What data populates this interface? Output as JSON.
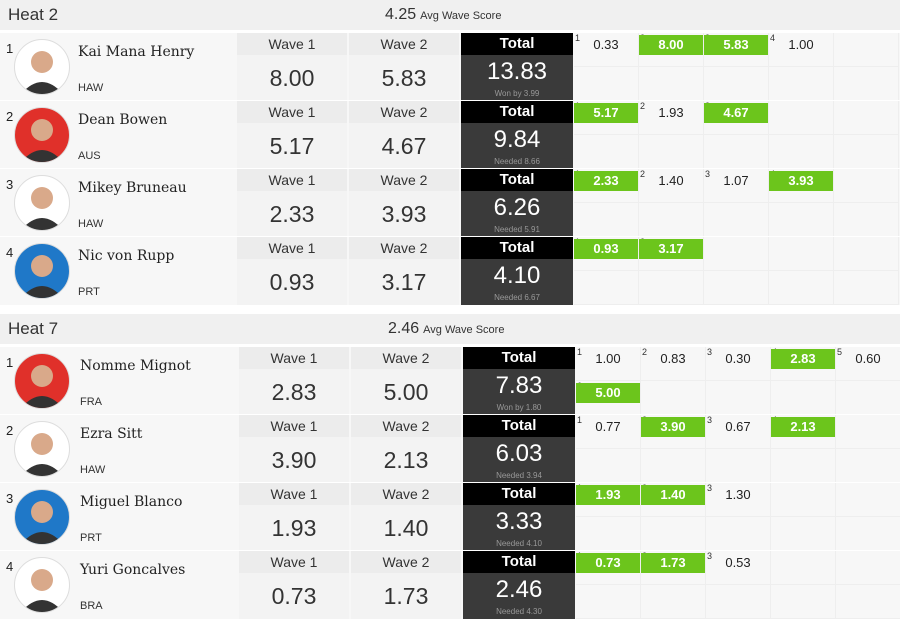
{
  "heats": [
    {
      "title": "Heat 2",
      "avg": "4.25",
      "avg_label": "Avg Wave Score",
      "surfers": [
        {
          "rank": "1",
          "name": "Kai Mana Henry",
          "country": "HAW",
          "wave1_label": "Wave 1",
          "wave1": "8.00",
          "wave2_label": "Wave 2",
          "wave2": "5.83",
          "total_label": "Total",
          "total": "13.83",
          "note": "Won by 3.99",
          "waves": [
            {
              "n": "1",
              "score": "0.33",
              "counted": false
            },
            {
              "n": "2",
              "score": "8.00",
              "counted": true
            },
            {
              "n": "3",
              "score": "5.83",
              "counted": true
            },
            {
              "n": "4",
              "score": "1.00",
              "counted": false
            }
          ]
        },
        {
          "rank": "2",
          "name": "Dean Bowen",
          "country": "AUS",
          "wave1_label": "Wave 1",
          "wave1": "5.17",
          "wave2_label": "Wave 2",
          "wave2": "4.67",
          "total_label": "Total",
          "total": "9.84",
          "note": "Needed 8.66",
          "waves": [
            {
              "n": "1",
              "score": "5.17",
              "counted": true
            },
            {
              "n": "2",
              "score": "1.93",
              "counted": false
            },
            {
              "n": "3",
              "score": "4.67",
              "counted": true
            }
          ]
        },
        {
          "rank": "3",
          "name": "Mikey Bruneau",
          "country": "HAW",
          "wave1_label": "Wave 1",
          "wave1": "2.33",
          "wave2_label": "Wave 2",
          "wave2": "3.93",
          "total_label": "Total",
          "total": "6.26",
          "note": "Needed 5.91",
          "waves": [
            {
              "n": "1",
              "score": "2.33",
              "counted": true
            },
            {
              "n": "2",
              "score": "1.40",
              "counted": false
            },
            {
              "n": "3",
              "score": "1.07",
              "counted": false
            },
            {
              "n": "4",
              "score": "3.93",
              "counted": true
            }
          ]
        },
        {
          "rank": "4",
          "name": "Nic von Rupp",
          "country": "PRT",
          "wave1_label": "Wave 1",
          "wave1": "0.93",
          "wave2_label": "Wave 2",
          "wave2": "3.17",
          "total_label": "Total",
          "total": "4.10",
          "note": "Needed 6.67",
          "waves": [
            {
              "n": "1",
              "score": "0.93",
              "counted": true
            },
            {
              "n": "2",
              "score": "3.17",
              "counted": true
            }
          ]
        }
      ]
    },
    {
      "title": "Heat 7",
      "avg": "2.46",
      "avg_label": "Avg Wave Score",
      "surfers": [
        {
          "rank": "1",
          "name": "Nomme Mignot",
          "country": "FRA",
          "wave1_label": "Wave 1",
          "wave1": "2.83",
          "wave2_label": "Wave 2",
          "wave2": "5.00",
          "total_label": "Total",
          "total": "7.83",
          "note": "Won by 1.80",
          "waves": [
            {
              "n": "1",
              "score": "1.00",
              "counted": false
            },
            {
              "n": "2",
              "score": "0.83",
              "counted": false
            },
            {
              "n": "3",
              "score": "0.30",
              "counted": false
            },
            {
              "n": "4",
              "score": "2.83",
              "counted": true
            },
            {
              "n": "5",
              "score": "0.60",
              "counted": false
            },
            {
              "n": "6",
              "score": "5.00",
              "counted": true
            }
          ]
        },
        {
          "rank": "2",
          "name": "Ezra Sitt",
          "country": "HAW",
          "wave1_label": "Wave 1",
          "wave1": "3.90",
          "wave2_label": "Wave 2",
          "wave2": "2.13",
          "total_label": "Total",
          "total": "6.03",
          "note": "Needed 3.94",
          "waves": [
            {
              "n": "1",
              "score": "0.77",
              "counted": false
            },
            {
              "n": "2",
              "score": "3.90",
              "counted": true
            },
            {
              "n": "3",
              "score": "0.67",
              "counted": false
            },
            {
              "n": "4",
              "score": "2.13",
              "counted": true
            }
          ]
        },
        {
          "rank": "3",
          "name": "Miguel Blanco",
          "country": "PRT",
          "wave1_label": "Wave 1",
          "wave1": "1.93",
          "wave2_label": "Wave 2",
          "wave2": "1.40",
          "total_label": "Total",
          "total": "3.33",
          "note": "Needed 4.10",
          "waves": [
            {
              "n": "1",
              "score": "1.93",
              "counted": true
            },
            {
              "n": "2",
              "score": "1.40",
              "counted": true
            },
            {
              "n": "3",
              "score": "1.30",
              "counted": false
            }
          ]
        },
        {
          "rank": "4",
          "name": "Yuri Goncalves",
          "country": "BRA",
          "wave1_label": "Wave 1",
          "wave1": "0.73",
          "wave2_label": "Wave 2",
          "wave2": "1.73",
          "total_label": "Total",
          "total": "2.46",
          "note": "Needed 4.30",
          "waves": [
            {
              "n": "1",
              "score": "0.73",
              "counted": true
            },
            {
              "n": "2",
              "score": "1.73",
              "counted": true
            },
            {
              "n": "3",
              "score": "0.53",
              "counted": false
            }
          ]
        }
      ]
    }
  ]
}
